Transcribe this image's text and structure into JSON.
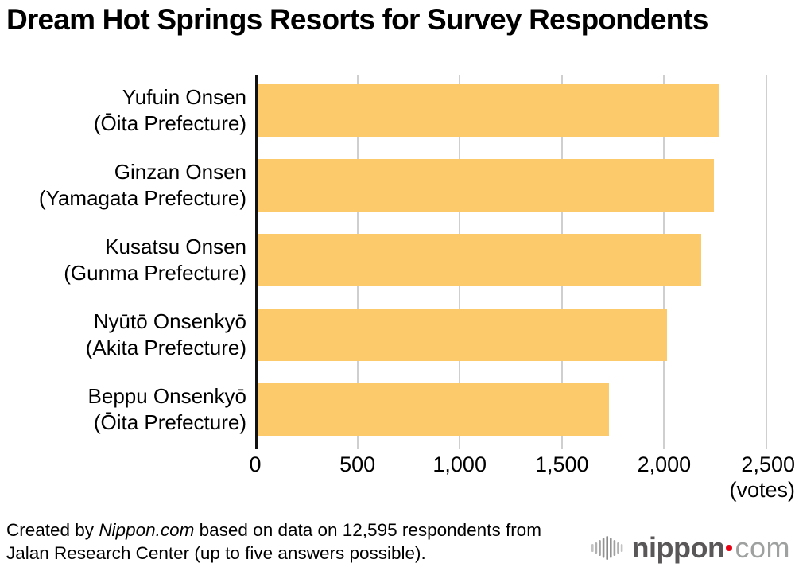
{
  "title": "Dream Hot Springs Resorts for Survey Respondents",
  "chart_data": {
    "type": "bar",
    "orientation": "horizontal",
    "title": "Dream Hot Springs Resorts for Survey Respondents",
    "categories": [
      [
        "Yufuin Onsen",
        "(Ōita Prefecture)"
      ],
      [
        "Ginzan Onsen",
        "(Yamagata Prefecture)"
      ],
      [
        "Kusatsu Onsen",
        "(Gunma Prefecture)"
      ],
      [
        "Nyūtō Onsenkyō",
        "(Akita Prefecture)"
      ],
      [
        "Beppu Onsenkyō",
        "(Ōita Prefecture)"
      ]
    ],
    "values": [
      2260,
      2235,
      2170,
      2005,
      1720
    ],
    "xlim": [
      0,
      2500
    ],
    "x_ticks": [
      {
        "value": 0,
        "label": "0"
      },
      {
        "value": 500,
        "label": "500"
      },
      {
        "value": 1000,
        "label": "1,000"
      },
      {
        "value": 1500,
        "label": "1,500"
      },
      {
        "value": 2000,
        "label": "2,000"
      },
      {
        "value": 2500,
        "label": "2,500"
      }
    ],
    "x_unit_label": "(votes)",
    "grid": true,
    "legend": false,
    "bar_color": "#fcca6b",
    "gridline_color": "#cfcfcf",
    "axis_color": "#111111"
  },
  "footer": {
    "line1_pre": "Created by ",
    "line1_italic": "Nippon.com",
    "line1_post": " based on data on 12,595 respondents from",
    "line2": "Jalan Research Center (up to five answers possible)."
  },
  "logo": {
    "wordmark": "nippon",
    "tld": "com",
    "icon": "soundwave-bars-icon",
    "brand_dark": "#595757",
    "brand_light": "#9fa0a0",
    "brand_red": "#e60012"
  }
}
